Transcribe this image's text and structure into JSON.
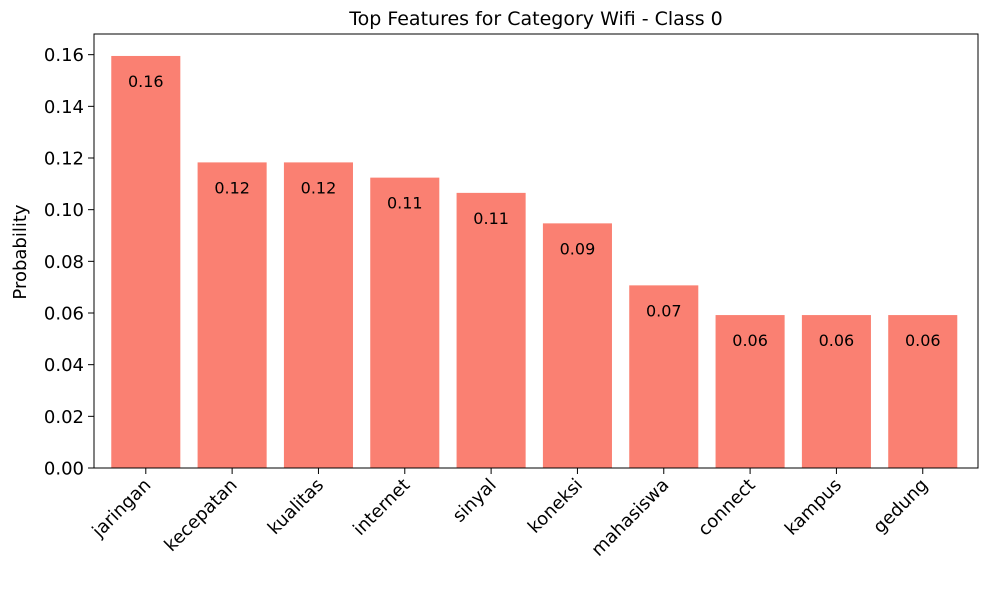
{
  "chart_data": {
    "type": "bar",
    "title": "Top Features for Category Wifi - Class 0",
    "xlabel": "",
    "ylabel": "Probability",
    "categories": [
      "jaringan",
      "kecepatan",
      "kualitas",
      "internet",
      "sinyal",
      "koneksi",
      "mahasiswa",
      "connect",
      "kampus",
      "gedung"
    ],
    "values": [
      0.1595,
      0.1183,
      0.1183,
      0.1124,
      0.1065,
      0.0947,
      0.0707,
      0.0592,
      0.0592,
      0.0592
    ],
    "data_labels": [
      "0.16",
      "0.12",
      "0.12",
      "0.11",
      "0.11",
      "0.09",
      "0.07",
      "0.06",
      "0.06",
      "0.06"
    ],
    "ylim": [
      0,
      0.168
    ],
    "yticks": [
      0.0,
      0.02,
      0.04,
      0.06,
      0.08,
      0.1,
      0.12,
      0.14,
      0.16
    ],
    "ytick_labels": [
      "0.00",
      "0.02",
      "0.04",
      "0.06",
      "0.08",
      "0.10",
      "0.12",
      "0.14",
      "0.16"
    ],
    "grid": false,
    "bar_color": "#fa8072"
  }
}
